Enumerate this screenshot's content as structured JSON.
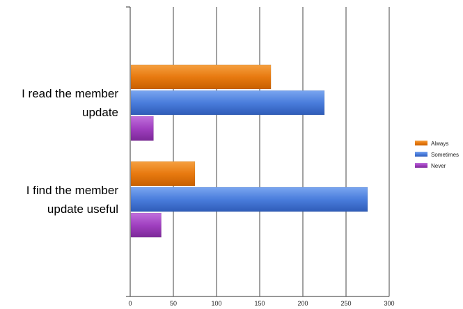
{
  "chart_data": {
    "type": "bar",
    "orientation": "horizontal",
    "categories": [
      [
        "I read the member",
        "update"
      ],
      [
        "I find the member",
        "update useful"
      ]
    ],
    "series": [
      {
        "name": "Always",
        "values": [
          163,
          75
        ],
        "color": "#e87a10"
      },
      {
        "name": "Sometimes",
        "values": [
          225,
          275
        ],
        "color": "#4a7ddc"
      },
      {
        "name": "Never",
        "values": [
          27,
          36
        ],
        "color": "#a040c0"
      }
    ],
    "xlim": [
      0,
      300
    ],
    "xticks": [
      0,
      50,
      100,
      150,
      200,
      250,
      300
    ],
    "grid": true,
    "legend": "right"
  }
}
